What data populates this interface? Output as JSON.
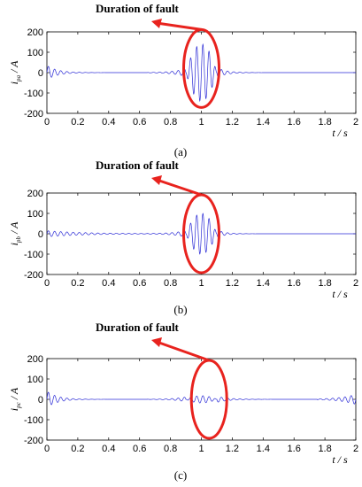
{
  "chart_data": [
    {
      "type": "line",
      "annotation": "Duration of fault",
      "caption": "(a)",
      "ylabel": {
        "main": "i",
        "sub": "pa",
        "unit": " / A"
      },
      "xlabel": {
        "main": "t",
        "unit": " / s"
      },
      "xlim": [
        0,
        2
      ],
      "ylim": [
        -200,
        200
      ],
      "xticks": [
        "0",
        "0.2",
        "0.4",
        "0.6",
        "0.8",
        "1",
        "1.2",
        "1.4",
        "1.6",
        "1.8",
        "2"
      ],
      "yticks": [
        "200",
        "100",
        "0",
        "-100",
        "-200"
      ],
      "series": [
        {
          "color": "#2b2bd6",
          "envelope": {
            "start_amp": 35,
            "start_decay": 0.07,
            "fault_start": 0.9,
            "fault_end": 1.1,
            "fault_peak": 140,
            "post_amp": 25,
            "post_decay": 0.06,
            "freq": 25
          }
        }
      ],
      "fault_marker": {
        "t_center": 1.0,
        "y_center": 20,
        "color": "#e8231e"
      }
    },
    {
      "type": "line",
      "annotation": "Duration of fault",
      "caption": "(b)",
      "ylabel": {
        "main": "i",
        "sub": "pb",
        "unit": " / A"
      },
      "xlabel": {
        "main": "t",
        "unit": " / s"
      },
      "xlim": [
        0,
        2
      ],
      "ylim": [
        -200,
        200
      ],
      "xticks": [
        "0",
        "0.2",
        "0.4",
        "0.6",
        "0.8",
        "1",
        "1.2",
        "1.4",
        "1.6",
        "1.8",
        "2"
      ],
      "yticks": [
        "200",
        "100",
        "0",
        "-100",
        "-200"
      ],
      "series": [
        {
          "color": "#2b2bd6",
          "envelope": {
            "start_amp": 15,
            "start_decay": 0.25,
            "fault_start": 0.9,
            "fault_end": 1.1,
            "fault_peak": 100,
            "post_amp": 20,
            "post_decay": 0.05,
            "freq": 25
          }
        }
      ],
      "fault_marker": {
        "t_center": 1.0,
        "y_center": 0,
        "color": "#e8231e"
      }
    },
    {
      "type": "line",
      "annotation": "Duration of fault",
      "caption": "(c)",
      "ylabel": {
        "main": "i",
        "sub": "pc",
        "unit": " / A"
      },
      "xlabel": {
        "main": "t",
        "unit": " / s"
      },
      "xlim": [
        0,
        2
      ],
      "ylim": [
        -200,
        200
      ],
      "xticks": [
        "0",
        "0.2",
        "0.4",
        "0.6",
        "0.8",
        "1",
        "1.2",
        "1.4",
        "1.6",
        "1.8",
        "2"
      ],
      "yticks": [
        "200",
        "100",
        "0",
        "-100",
        "-200"
      ],
      "series": [
        {
          "color": "#2b2bd6",
          "envelope": {
            "start_amp": 40,
            "start_decay": 0.07,
            "fault_start": 0.9,
            "fault_end": 1.1,
            "fault_peak": 18,
            "post_amp": 15,
            "post_decay": 0.08,
            "freq": 25,
            "end_amp": 25
          }
        }
      ],
      "fault_marker": {
        "t_center": 1.05,
        "y_center": 0,
        "color": "#e8231e"
      }
    }
  ]
}
